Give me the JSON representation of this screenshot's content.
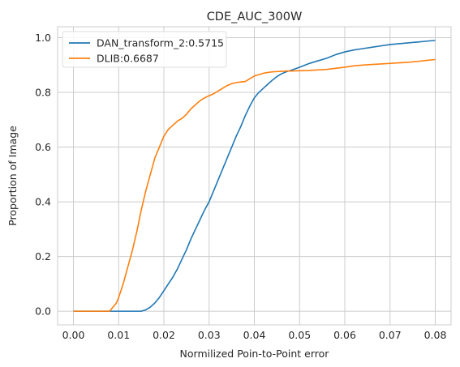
{
  "chart_data": {
    "type": "line",
    "title": "CDE_AUC_300W",
    "xlabel": "Normilized Poin-to-Point error",
    "ylabel": "Proportion of Image",
    "xlim": [
      -0.0035,
      0.0835
    ],
    "ylim": [
      -0.05,
      1.04
    ],
    "xticks": [
      0.0,
      0.01,
      0.02,
      0.03,
      0.04,
      0.05,
      0.06,
      0.07,
      0.08
    ],
    "xtick_labels": [
      "0.00",
      "0.01",
      "0.02",
      "0.03",
      "0.04",
      "0.05",
      "0.06",
      "0.07",
      "0.08"
    ],
    "yticks": [
      0.0,
      0.2,
      0.4,
      0.6,
      0.8,
      1.0
    ],
    "ytick_labels": [
      "0.0",
      "0.2",
      "0.4",
      "0.6",
      "0.8",
      "1.0"
    ],
    "grid": true,
    "legend_position": "top-left",
    "series": [
      {
        "name": "DAN_transform_2:0.5715",
        "color": "#1f77b4",
        "x": [
          0.0,
          0.015,
          0.016,
          0.017,
          0.018,
          0.019,
          0.02,
          0.021,
          0.022,
          0.023,
          0.024,
          0.025,
          0.026,
          0.027,
          0.028,
          0.029,
          0.03,
          0.031,
          0.032,
          0.033,
          0.034,
          0.035,
          0.036,
          0.037,
          0.038,
          0.039,
          0.04,
          0.041,
          0.042,
          0.043,
          0.044,
          0.045,
          0.046,
          0.047,
          0.048,
          0.05,
          0.052,
          0.054,
          0.056,
          0.058,
          0.06,
          0.062,
          0.064,
          0.066,
          0.068,
          0.07,
          0.072,
          0.074,
          0.076,
          0.078,
          0.08
        ],
        "y": [
          0.0,
          0.0,
          0.005,
          0.015,
          0.03,
          0.05,
          0.075,
          0.1,
          0.125,
          0.155,
          0.19,
          0.225,
          0.265,
          0.3,
          0.335,
          0.37,
          0.4,
          0.44,
          0.48,
          0.52,
          0.56,
          0.6,
          0.64,
          0.675,
          0.715,
          0.75,
          0.78,
          0.8,
          0.815,
          0.83,
          0.845,
          0.858,
          0.868,
          0.875,
          0.88,
          0.892,
          0.905,
          0.915,
          0.925,
          0.938,
          0.948,
          0.955,
          0.96,
          0.965,
          0.97,
          0.975,
          0.978,
          0.981,
          0.984,
          0.987,
          0.99
        ]
      },
      {
        "name": "DLIB:0.6687",
        "color": "#ff7f0e",
        "x": [
          0.0,
          0.008,
          0.0085,
          0.009,
          0.0095,
          0.01,
          0.011,
          0.012,
          0.013,
          0.014,
          0.015,
          0.016,
          0.017,
          0.018,
          0.019,
          0.02,
          0.021,
          0.022,
          0.023,
          0.024,
          0.025,
          0.026,
          0.027,
          0.028,
          0.029,
          0.03,
          0.031,
          0.032,
          0.033,
          0.034,
          0.035,
          0.036,
          0.037,
          0.038,
          0.039,
          0.04,
          0.041,
          0.042,
          0.043,
          0.044,
          0.045,
          0.046,
          0.047,
          0.048,
          0.05,
          0.052,
          0.054,
          0.056,
          0.058,
          0.06,
          0.062,
          0.064,
          0.066,
          0.068,
          0.07,
          0.072,
          0.074,
          0.076,
          0.078,
          0.08
        ],
        "y": [
          0.0,
          0.0,
          0.01,
          0.02,
          0.03,
          0.05,
          0.1,
          0.16,
          0.22,
          0.29,
          0.37,
          0.44,
          0.5,
          0.56,
          0.6,
          0.64,
          0.665,
          0.68,
          0.695,
          0.705,
          0.72,
          0.74,
          0.755,
          0.77,
          0.78,
          0.788,
          0.795,
          0.805,
          0.815,
          0.825,
          0.832,
          0.836,
          0.838,
          0.84,
          0.85,
          0.86,
          0.865,
          0.87,
          0.873,
          0.875,
          0.876,
          0.877,
          0.878,
          0.878,
          0.879,
          0.88,
          0.882,
          0.884,
          0.888,
          0.892,
          0.897,
          0.9,
          0.902,
          0.904,
          0.906,
          0.908,
          0.91,
          0.913,
          0.917,
          0.92
        ]
      }
    ]
  }
}
